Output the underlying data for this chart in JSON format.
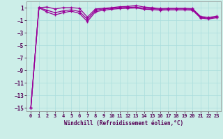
{
  "xlabel": "Windchill (Refroidissement éolien,°C)",
  "bg_color": "#cceee8",
  "line_color": "#990099",
  "grid_color": "#aadddd",
  "axis_color": "#888888",
  "xlim": [
    -0.5,
    23.5
  ],
  "ylim": [
    -15.5,
    2.0
  ],
  "yticks": [
    1,
    -1,
    -3,
    -5,
    -7,
    -9,
    -11,
    -13,
    -15
  ],
  "xticks": [
    0,
    1,
    2,
    3,
    4,
    5,
    6,
    7,
    8,
    9,
    10,
    11,
    12,
    13,
    14,
    15,
    16,
    17,
    18,
    19,
    20,
    21,
    22,
    23
  ],
  "x": [
    0,
    1,
    2,
    3,
    4,
    5,
    6,
    7,
    8,
    9,
    10,
    11,
    12,
    13,
    14,
    15,
    16,
    17,
    18,
    19,
    20,
    21,
    22,
    23
  ],
  "line1": [
    -15.0,
    1.0,
    1.1,
    0.8,
    1.0,
    1.0,
    0.9,
    -0.5,
    0.8,
    0.9,
    1.0,
    1.15,
    1.2,
    1.35,
    1.1,
    1.0,
    0.85,
    0.9,
    0.9,
    0.9,
    0.85,
    -0.4,
    -0.55,
    -0.35
  ],
  "line2": [
    -15.0,
    1.0,
    0.6,
    0.2,
    0.5,
    0.65,
    0.4,
    -0.85,
    0.6,
    0.8,
    0.9,
    1.0,
    1.05,
    1.1,
    0.9,
    0.85,
    0.75,
    0.8,
    0.8,
    0.8,
    0.75,
    -0.55,
    -0.7,
    -0.5
  ],
  "line3": [
    -15.0,
    1.0,
    0.3,
    -0.15,
    0.2,
    0.45,
    0.1,
    -1.2,
    0.35,
    0.6,
    0.75,
    0.85,
    0.9,
    0.95,
    0.75,
    0.7,
    0.6,
    0.65,
    0.65,
    0.65,
    0.6,
    -0.65,
    -0.8,
    -0.6
  ]
}
